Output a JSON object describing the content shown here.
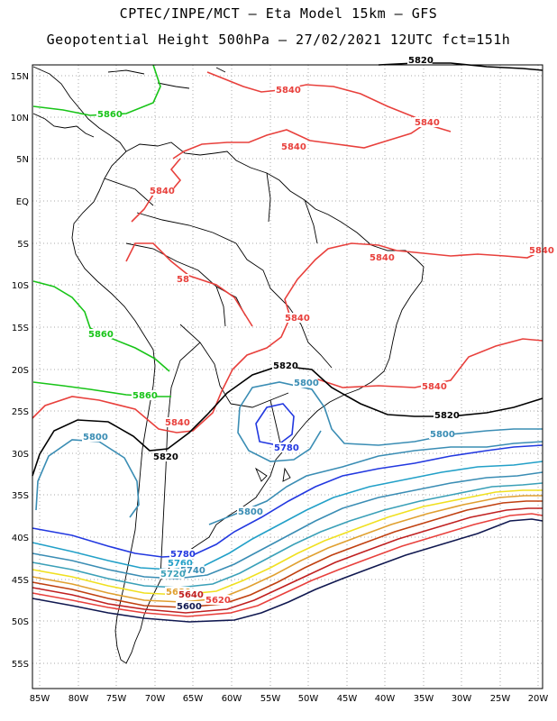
{
  "header": {
    "line1": "CPTEC/INPE/MCT –  Eta Model 15km – GFS",
    "line2": "Geopotential Height 500hPa – 27/02/2021 12UTC fct=151h"
  },
  "axes": {
    "lon_labels": [
      "85W",
      "80W",
      "75W",
      "70W",
      "65W",
      "60W",
      "55W",
      "50W",
      "45W",
      "40W",
      "35W",
      "30W",
      "25W",
      "20W"
    ],
    "lat_labels": [
      "15N",
      "10N",
      "5N",
      "EQ",
      "5S",
      "10S",
      "15S",
      "20S",
      "25S",
      "30S",
      "35S",
      "40S",
      "45S",
      "50S",
      "55S"
    ],
    "grid": "dotted"
  },
  "contours": [
    {
      "level": "5840",
      "color": "#e8403c"
    },
    {
      "level": "5820",
      "color": "#000000"
    },
    {
      "level": "5860",
      "color": "#18c418"
    },
    {
      "level": "5800",
      "color": "#3a8db4"
    },
    {
      "level": "5780",
      "color": "#2238e0"
    },
    {
      "level": "5760",
      "color": "#22a0c8"
    },
    {
      "level": "5740",
      "color": "#3a8db4"
    },
    {
      "level": "5720",
      "color": "#3aa0b8"
    },
    {
      "level": "5700",
      "color": "#f0e020"
    },
    {
      "level": "5680",
      "color": "#e0a030"
    },
    {
      "level": "5660",
      "color": "#c04010"
    },
    {
      "level": "5640",
      "color": "#c02020"
    },
    {
      "level": "5620",
      "color": "#e8403c"
    },
    {
      "level": "5600",
      "color": "#101850"
    }
  ],
  "labels": [
    {
      "text": "5820",
      "color": "#000000"
    },
    {
      "text": "5840",
      "color": "#e8403c"
    },
    {
      "text": "5840",
      "color": "#e8403c"
    },
    {
      "text": "5840",
      "color": "#e8403c"
    },
    {
      "text": "5840",
      "color": "#e8403c"
    },
    {
      "text": "5840",
      "color": "#e8403c"
    },
    {
      "text": "5840",
      "color": "#e8403c"
    },
    {
      "text": "58",
      "color": "#e8403c"
    },
    {
      "text": "5840",
      "color": "#e8403c"
    },
    {
      "text": "5840",
      "color": "#e8403c"
    },
    {
      "text": "5840",
      "color": "#e8403c"
    },
    {
      "text": "5860",
      "color": "#18c418"
    },
    {
      "text": "5860",
      "color": "#18c418"
    },
    {
      "text": "5860",
      "color": "#18c418"
    },
    {
      "text": "5820",
      "color": "#000000"
    },
    {
      "text": "5820",
      "color": "#000000"
    },
    {
      "text": "5820",
      "color": "#000000"
    },
    {
      "text": "5800",
      "color": "#3a8db4"
    },
    {
      "text": "5800",
      "color": "#3a8db4"
    },
    {
      "text": "5800",
      "color": "#3a8db4"
    },
    {
      "text": "5800",
      "color": "#3a8db4"
    },
    {
      "text": "5780",
      "color": "#2238e0"
    },
    {
      "text": "5780",
      "color": "#2238e0"
    },
    {
      "text": "5760",
      "color": "#22a0c8"
    },
    {
      "text": "5740",
      "color": "#3a8db4"
    },
    {
      "text": "5720",
      "color": "#3aa0b8"
    },
    {
      "text": "5680",
      "color": "#e0a030"
    },
    {
      "text": "5640",
      "color": "#c02020"
    },
    {
      "text": "5620",
      "color": "#e8403c"
    },
    {
      "text": "5600",
      "color": "#101850"
    }
  ]
}
